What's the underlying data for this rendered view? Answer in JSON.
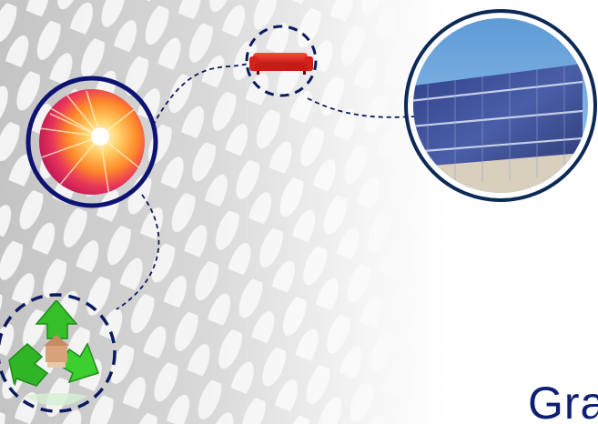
{
  "slide": {
    "caption_fragment": "Gra",
    "colors": {
      "navy": "#0d1373",
      "dash": "#0b1a5e",
      "caption": "#0d1f73",
      "background_gray": "#cfcfcf"
    },
    "images": [
      {
        "name": "light-burst-photo"
      },
      {
        "name": "red-sofa-image"
      },
      {
        "name": "solar-panels-photo"
      },
      {
        "name": "recycle-symbol-image"
      }
    ]
  }
}
